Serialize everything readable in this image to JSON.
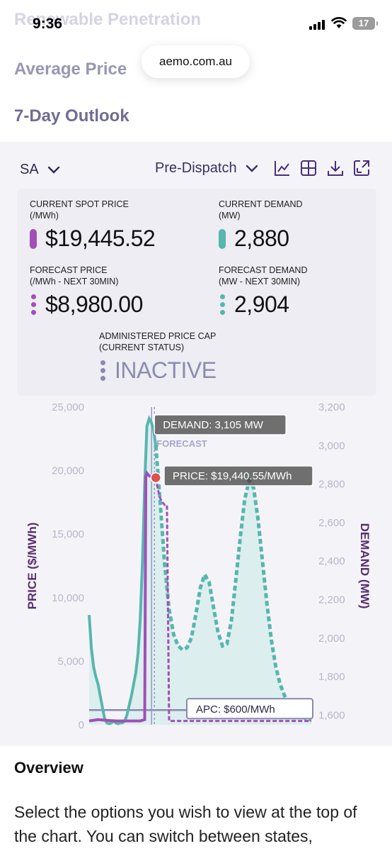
{
  "status_bar": {
    "time": "9:36",
    "battery": "17"
  },
  "nav": {
    "faded": "Renewable Penetration",
    "average_price": "Average Price",
    "outlook": "7-Day Outlook"
  },
  "browser": {
    "url": "aemo.com.au"
  },
  "toolbar": {
    "state": "SA",
    "mode": "Pre-Dispatch",
    "icons": [
      "chart-icon",
      "table-icon",
      "download-icon",
      "expand-icon"
    ]
  },
  "stats": {
    "spot_price": {
      "label": "CURRENT SPOT PRICE",
      "sub": "(/MWh)",
      "value": "$19,445.52"
    },
    "demand": {
      "label": "CURRENT DEMAND",
      "sub": "(MW)",
      "value": "2,880"
    },
    "forecast_price": {
      "label": "FORECAST PRICE",
      "sub": "(/MWh - NEXT 30MIN)",
      "value": "$8,980.00"
    },
    "forecast_demand": {
      "label": "FORECAST DEMAND",
      "sub": "(MW - NEXT 30MIN)",
      "value": "2,904"
    },
    "apc": {
      "label": "ADMINISTERED PRICE CAP",
      "sub": "(CURRENT STATUS)",
      "value": "INACTIVE"
    }
  },
  "colors": {
    "price": "#a14fb6",
    "demand": "#57b6ae",
    "demand_fill": "#d6ecec",
    "apc": "#8a88b0"
  },
  "chart_data": {
    "type": "line",
    "left_axis": {
      "label": "PRICE ($/MWh)",
      "ticks": [
        "25,000",
        "20,000",
        "15,000",
        "10,000",
        "5,000",
        "0"
      ],
      "values": [
        25000,
        20000,
        15000,
        10000,
        5000,
        0
      ],
      "ylim": [
        0,
        25000
      ]
    },
    "right_axis": {
      "label": "DEMAND (MW)",
      "ticks": [
        "3,200",
        "3,000",
        "2,800",
        "2,600",
        "2,400",
        "2,200",
        "2,000",
        "1,800",
        "1,600"
      ],
      "values": [
        3200,
        3000,
        2800,
        2600,
        2400,
        2200,
        2000,
        1800,
        1600
      ],
      "ylim": [
        1550,
        3200
      ]
    },
    "marker_label": "FORECAST",
    "tooltip_demand": "DEMAND: 3,105 MW",
    "tooltip_price": "PRICE: $19,440.55/MWh",
    "apc_label": "APC: $600/MWh",
    "x_range": [
      0,
      100
    ],
    "marker_x": 30,
    "series": [
      {
        "key": "demand_actual",
        "style": "solid",
        "x": [
          0,
          1,
          2,
          3,
          4,
          5,
          6,
          7,
          8,
          9,
          10,
          11,
          12,
          13,
          14,
          15,
          16,
          17,
          18,
          19,
          20,
          21,
          22,
          23,
          24,
          25,
          26,
          27,
          28,
          29,
          30
        ],
        "y": [
          2120,
          1950,
          1850,
          1800,
          1760,
          1700,
          1640,
          1580,
          1560,
          1555,
          1560,
          1570,
          1560,
          1555,
          1560,
          1560,
          1570,
          1600,
          1650,
          1700,
          1760,
          1820,
          1920,
          2100,
          2400,
          2800,
          3100,
          3140,
          3120,
          3080,
          3000
        ]
      },
      {
        "key": "demand_forecast",
        "style": "dashed",
        "x": [
          30,
          32,
          34,
          36,
          38,
          40,
          42,
          44,
          46,
          48,
          50,
          52,
          54,
          56,
          58,
          60,
          62,
          64,
          66,
          68,
          70,
          72,
          74,
          76,
          78,
          80,
          82,
          84,
          86,
          88,
          90,
          92,
          94,
          96,
          98,
          100
        ],
        "y": [
          3000,
          2700,
          2380,
          2150,
          2020,
          1960,
          1940,
          1950,
          2000,
          2120,
          2260,
          2330,
          2290,
          2160,
          2030,
          1960,
          1970,
          2090,
          2300,
          2520,
          2720,
          2820,
          2780,
          2620,
          2400,
          2180,
          1990,
          1850,
          1760,
          1700,
          1650,
          1620,
          1600,
          1590,
          1580,
          1575
        ]
      },
      {
        "key": "price_actual",
        "style": "solid",
        "x": [
          0,
          4,
          8,
          12,
          16,
          20,
          23,
          24,
          25,
          25.5,
          26,
          27,
          28,
          29,
          30
        ],
        "y": [
          300,
          400,
          350,
          300,
          300,
          300,
          300,
          350,
          400,
          19500,
          19800,
          19600,
          19500,
          19450,
          19440
        ]
      },
      {
        "key": "price_forecast",
        "style": "dashed",
        "x": [
          30,
          31,
          32,
          33,
          34,
          35,
          36,
          38,
          40,
          50,
          60,
          70,
          80,
          90,
          100
        ],
        "y": [
          19440,
          18500,
          17800,
          17500,
          17300,
          17300,
          300,
          300,
          300,
          300,
          300,
          300,
          300,
          300,
          300
        ]
      }
    ],
    "apc_value": 600
  },
  "overview": {
    "title": "Overview",
    "text": "Select the options you wish to view at the top of the chart. You can switch between states,"
  }
}
